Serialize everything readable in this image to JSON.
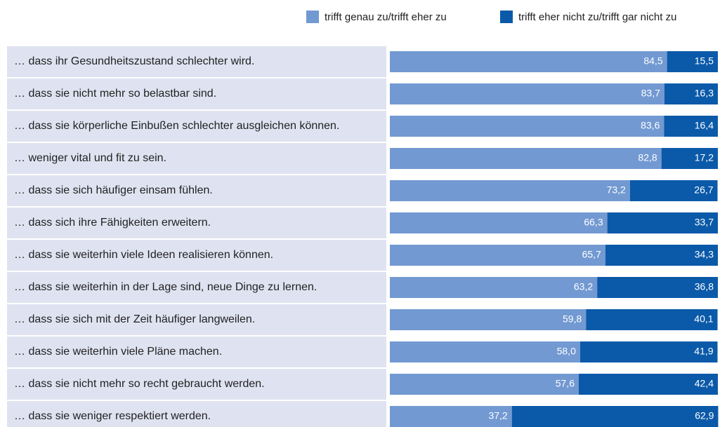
{
  "chart_data": {
    "type": "stacked-barh",
    "categories": [
      "… dass ihr Gesundheitszustand schlechter wird.",
      "… dass sie nicht mehr so belastbar sind.",
      "… dass sie körperliche Einbußen schlechter ausgleichen können.",
      "… weniger vital und fit zu sein.",
      "… dass sie sich häufiger einsam fühlen.",
      "… dass sich ihre Fähigkeiten erweitern.",
      "… dass sie weiterhin viele Ideen realisieren können.",
      "… dass sie weiterhin in der Lage sind, neue Dinge zu lernen.",
      "… dass sie sich mit der Zeit häufiger langweilen.",
      "… dass sie weiterhin viele Pläne machen.",
      "… dass sie nicht mehr so recht gebraucht werden.",
      "… dass sie weniger respektiert werden."
    ],
    "series": [
      {
        "name": "trifft genau zu/trifft eher zu",
        "color": "#7299d2",
        "values": [
          84.5,
          83.7,
          83.6,
          82.8,
          73.2,
          66.3,
          65.7,
          63.2,
          59.8,
          58.0,
          57.6,
          37.2
        ],
        "value_labels": [
          "84,5",
          "83,7",
          "83,6",
          "82,8",
          "73,2",
          "66,3",
          "65,7",
          "63,2",
          "59,8",
          "58,0",
          "57,6",
          "37,2"
        ]
      },
      {
        "name": "trifft eher nicht zu/trifft gar nicht zu",
        "color": "#0b5aa9",
        "values": [
          15.5,
          16.3,
          16.4,
          17.2,
          26.7,
          33.7,
          34.3,
          36.8,
          40.1,
          41.9,
          42.4,
          62.9
        ],
        "value_labels": [
          "15,5",
          "16,3",
          "16,4",
          "17,2",
          "26,7",
          "33,7",
          "34,3",
          "36,8",
          "40,1",
          "41,9",
          "42,4",
          "62,9"
        ]
      }
    ],
    "xlim": [
      0,
      100
    ],
    "legend": "top-right"
  }
}
